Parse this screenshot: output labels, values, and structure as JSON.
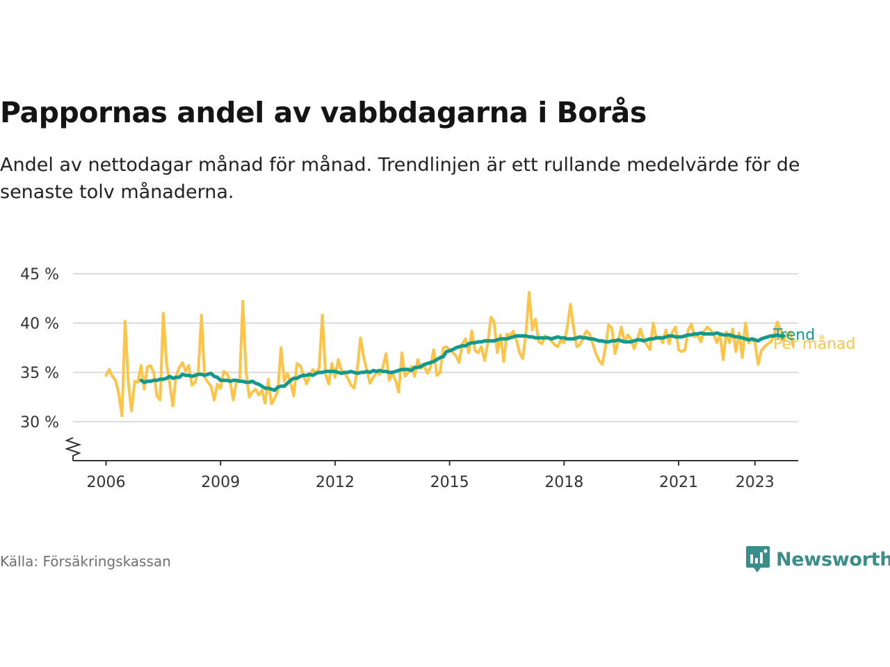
{
  "title": "Pappornas andel av vabbdagarna i Borås",
  "subtitle": "Andel av nettodagar månad för månad. Trendlinjen är ett rullande medelvärde för de senaste tolv månaderna.",
  "source": "Källa: Försäkringskassan",
  "brand": "Newsworthy",
  "colors": {
    "trend": "#12998a",
    "monthly": "#fdc448",
    "grid": "#dcdcdc",
    "axis": "#333333"
  },
  "chart_data": {
    "type": "line",
    "x_unit": "year (decimal)",
    "xlim": [
      2006,
      2023.33
    ],
    "ylim": [
      26,
      45
    ],
    "y_axis_break": true,
    "grid": true,
    "x_ticks": [
      2006,
      2009,
      2012,
      2015,
      2018,
      2021,
      2023
    ],
    "x_tick_labels": [
      "2006",
      "2009",
      "2012",
      "2015",
      "2018",
      "2021",
      "2023"
    ],
    "y_ticks": [
      30,
      35,
      40,
      45
    ],
    "y_tick_labels": [
      "30 %",
      "35 %",
      "40 %",
      "45 %"
    ],
    "series": [
      {
        "name": "Per månad",
        "color": "#fdc448",
        "start": 2006.0,
        "step": 0.0833333,
        "values": [
          34.7,
          35.3,
          34.6,
          34.2,
          32.8,
          30.6,
          40.2,
          34.0,
          31.1,
          34.1,
          34.0,
          35.7,
          33.3,
          35.6,
          35.7,
          35.0,
          32.6,
          32.2,
          41.0,
          36.0,
          33.9,
          31.6,
          34.6,
          35.5,
          36.0,
          35.1,
          35.7,
          33.7,
          34.0,
          35.1,
          40.8,
          34.5,
          34.0,
          33.6,
          32.2,
          33.8,
          33.4,
          35.1,
          34.9,
          34.1,
          32.2,
          34.2,
          34.2,
          42.2,
          35.1,
          32.5,
          33.0,
          33.3,
          32.7,
          33.2,
          31.9,
          34.3,
          31.8,
          32.4,
          33.1,
          37.5,
          34.1,
          34.9,
          34.0,
          32.6,
          35.9,
          35.7,
          34.8,
          33.8,
          34.7,
          35.3,
          34.9,
          35.5,
          40.8,
          34.8,
          33.8,
          35.9,
          34.5,
          36.3,
          35.2,
          34.9,
          34.4,
          33.7,
          33.4,
          35.4,
          38.5,
          36.5,
          35.2,
          33.9,
          34.5,
          35.0,
          34.8,
          35.5,
          36.9,
          34.2,
          34.9,
          34.2,
          33.0,
          37.0,
          34.6,
          35.0,
          35.6,
          34.6,
          36.3,
          35.4,
          35.7,
          34.9,
          35.5,
          37.3,
          34.7,
          35.0,
          37.5,
          37.6,
          37.3,
          37.0,
          36.7,
          36.0,
          37.9,
          38.4,
          37.0,
          39.2,
          37.2,
          37.0,
          37.6,
          36.2,
          38.0,
          40.6,
          40.1,
          37.0,
          38.8,
          36.1,
          38.9,
          38.7,
          39.2,
          38.3,
          37.0,
          36.4,
          39.0,
          43.1,
          39.3,
          40.4,
          38.1,
          37.9,
          38.7,
          38.5,
          38.2,
          37.8,
          37.6,
          38.3,
          38.0,
          39.6,
          41.9,
          39.5,
          37.6,
          37.8,
          38.5,
          39.2,
          38.9,
          37.9,
          36.9,
          36.2,
          35.8,
          37.6,
          39.8,
          39.5,
          36.9,
          38.2,
          39.6,
          38.1,
          38.8,
          38.4,
          37.4,
          38.3,
          39.4,
          38.3,
          37.8,
          37.3,
          40.0,
          38.4,
          38.6,
          38.0,
          39.3,
          37.9,
          39.1,
          39.6,
          37.3,
          37.1,
          37.3,
          39.3,
          39.9,
          38.6,
          38.8,
          38.1,
          39.2,
          39.6,
          39.3,
          38.9,
          38.0,
          38.9,
          36.3,
          39.1,
          38.0,
          39.4,
          37.1,
          39.0,
          36.5,
          40.0,
          38.0,
          38.4,
          38.0,
          35.8,
          37.2,
          37.6,
          37.9,
          38.1,
          38.8,
          40.1,
          39.3,
          38.2,
          38.9,
          39.1,
          37.7
        ]
      },
      {
        "name": "Trend",
        "color": "#12998a",
        "start": 2006.9167,
        "step": 0.0833333,
        "values": [
          34.2,
          34.0,
          34.1,
          34.1,
          34.2,
          34.2,
          34.3,
          34.3,
          34.4,
          34.6,
          34.4,
          34.5,
          34.5,
          34.8,
          34.7,
          34.7,
          34.6,
          34.7,
          34.8,
          34.8,
          34.7,
          34.8,
          34.9,
          34.6,
          34.5,
          34.2,
          34.2,
          34.2,
          34.1,
          34.2,
          34.2,
          34.1,
          34.1,
          34.0,
          34.0,
          34.1,
          33.9,
          33.8,
          33.6,
          33.4,
          33.4,
          33.3,
          33.2,
          33.5,
          33.6,
          33.6,
          33.9,
          34.2,
          34.4,
          34.4,
          34.6,
          34.7,
          34.7,
          34.8,
          34.7,
          34.9,
          35.0,
          35.0,
          35.1,
          35.1,
          35.1,
          35.1,
          35.0,
          34.9,
          35.0,
          35.0,
          35.1,
          35.0,
          34.9,
          35.0,
          35.0,
          35.1,
          35.0,
          35.2,
          35.1,
          35.2,
          35.1,
          35.1,
          35.0,
          35.0,
          35.1,
          35.2,
          35.3,
          35.3,
          35.3,
          35.2,
          35.5,
          35.5,
          35.6,
          35.8,
          35.9,
          36.0,
          36.1,
          36.3,
          36.5,
          36.6,
          37.1,
          37.2,
          37.3,
          37.5,
          37.6,
          37.7,
          37.7,
          37.9,
          38.0,
          38.0,
          38.1,
          38.1,
          38.2,
          38.2,
          38.2,
          38.2,
          38.3,
          38.4,
          38.4,
          38.4,
          38.5,
          38.6,
          38.7,
          38.7,
          38.7,
          38.7,
          38.6,
          38.6,
          38.5,
          38.5,
          38.5,
          38.5,
          38.5,
          38.4,
          38.5,
          38.6,
          38.5,
          38.5,
          38.4,
          38.4,
          38.4,
          38.5,
          38.6,
          38.5,
          38.5,
          38.4,
          38.4,
          38.3,
          38.2,
          38.2,
          38.1,
          38.1,
          38.2,
          38.2,
          38.3,
          38.2,
          38.1,
          38.1,
          38.1,
          38.2,
          38.3,
          38.3,
          38.2,
          38.3,
          38.4,
          38.4,
          38.5,
          38.5,
          38.5,
          38.6,
          38.7,
          38.7,
          38.6,
          38.6,
          38.6,
          38.7,
          38.8,
          38.8,
          38.9,
          38.9,
          39.0,
          38.9,
          38.9,
          38.9,
          38.9,
          39.0,
          38.9,
          38.8,
          38.8,
          38.8,
          38.7,
          38.6,
          38.6,
          38.5,
          38.4,
          38.3,
          38.4,
          38.3,
          38.2,
          38.4,
          38.5,
          38.6,
          38.7,
          38.7,
          38.8,
          38.7,
          38.7
        ]
      }
    ]
  }
}
